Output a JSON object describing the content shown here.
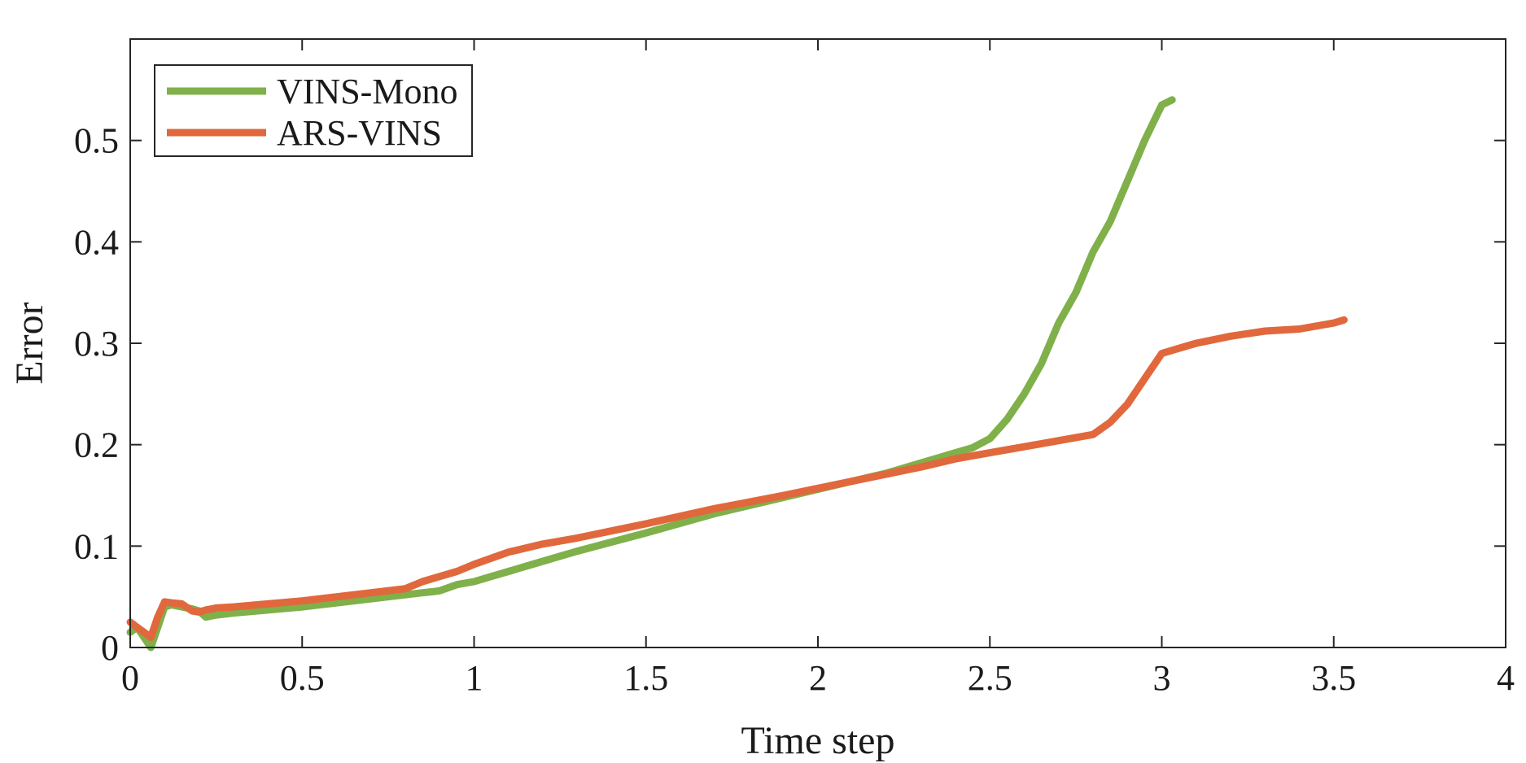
{
  "chart_data": {
    "type": "line",
    "title": "",
    "xlabel": "Time step",
    "ylabel": "Error",
    "xlim": [
      0,
      4
    ],
    "ylim": [
      0,
      0.6
    ],
    "xticks": [
      0,
      0.5,
      1,
      1.5,
      2,
      2.5,
      3,
      3.5,
      4
    ],
    "xtick_labels": [
      "0",
      "0.5",
      "1",
      "1.5",
      "2",
      "2.5",
      "3",
      "3.5",
      "4"
    ],
    "yticks": [
      0,
      0.1,
      0.2,
      0.3,
      0.4,
      0.5
    ],
    "ytick_labels": [
      "0",
      "0.1",
      "0.2",
      "0.3",
      "0.4",
      "0.5"
    ],
    "grid": false,
    "legend_position": "top-left",
    "series": [
      {
        "name": "VINS-Mono",
        "color": "#7fb04a",
        "x": [
          0,
          0.02,
          0.04,
          0.06,
          0.08,
          0.1,
          0.12,
          0.15,
          0.18,
          0.2,
          0.22,
          0.25,
          0.3,
          0.4,
          0.5,
          0.6,
          0.7,
          0.8,
          0.85,
          0.88,
          0.9,
          0.95,
          1.0,
          1.05,
          1.1,
          1.2,
          1.3,
          1.5,
          1.7,
          1.9,
          2.0,
          2.1,
          2.2,
          2.3,
          2.4,
          2.45,
          2.5,
          2.55,
          2.6,
          2.65,
          2.7,
          2.75,
          2.8,
          2.85,
          2.9,
          2.95,
          3.0,
          3.03
        ],
        "y": [
          0.015,
          0.02,
          0.01,
          0.0,
          0.02,
          0.04,
          0.042,
          0.04,
          0.038,
          0.036,
          0.03,
          0.032,
          0.034,
          0.037,
          0.04,
          0.044,
          0.048,
          0.052,
          0.054,
          0.055,
          0.056,
          0.062,
          0.065,
          0.07,
          0.075,
          0.085,
          0.095,
          0.113,
          0.132,
          0.148,
          0.156,
          0.164,
          0.172,
          0.182,
          0.192,
          0.197,
          0.206,
          0.225,
          0.25,
          0.28,
          0.32,
          0.35,
          0.39,
          0.42,
          0.46,
          0.5,
          0.535,
          0.54
        ]
      },
      {
        "name": "ARS-VINS",
        "color": "#e0683c",
        "x": [
          0,
          0.02,
          0.04,
          0.06,
          0.08,
          0.1,
          0.12,
          0.15,
          0.18,
          0.2,
          0.22,
          0.25,
          0.3,
          0.4,
          0.5,
          0.6,
          0.7,
          0.8,
          0.85,
          0.9,
          0.95,
          1.0,
          1.05,
          1.1,
          1.2,
          1.3,
          1.5,
          1.7,
          1.9,
          2.0,
          2.1,
          2.2,
          2.3,
          2.4,
          2.5,
          2.6,
          2.7,
          2.75,
          2.8,
          2.85,
          2.9,
          2.95,
          3.0,
          3.05,
          3.1,
          3.2,
          3.3,
          3.4,
          3.5,
          3.53
        ],
        "y": [
          0.025,
          0.02,
          0.015,
          0.01,
          0.03,
          0.045,
          0.044,
          0.043,
          0.036,
          0.035,
          0.037,
          0.039,
          0.04,
          0.043,
          0.046,
          0.05,
          0.054,
          0.058,
          0.065,
          0.07,
          0.075,
          0.082,
          0.088,
          0.094,
          0.102,
          0.108,
          0.122,
          0.137,
          0.15,
          0.157,
          0.164,
          0.171,
          0.178,
          0.186,
          0.192,
          0.198,
          0.204,
          0.207,
          0.21,
          0.222,
          0.24,
          0.265,
          0.29,
          0.295,
          0.3,
          0.307,
          0.312,
          0.314,
          0.32,
          0.323
        ]
      }
    ]
  }
}
